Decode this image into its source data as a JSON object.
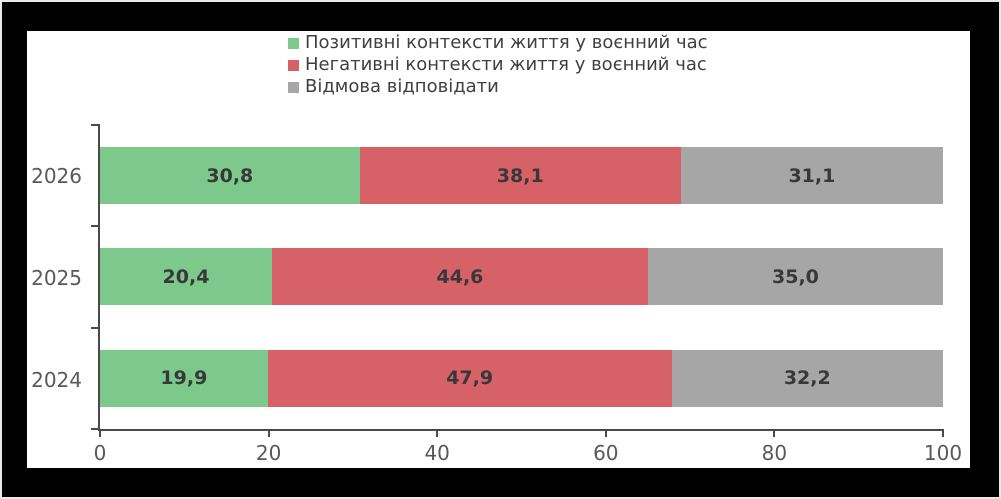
{
  "frame": {
    "background_color": "#000000",
    "outer_border_color": "#e9e9e9",
    "panel_background_color": "#ffffff"
  },
  "chart_data": {
    "type": "bar",
    "orientation": "horizontal",
    "stacked": true,
    "title": "",
    "categories": [
      "2026",
      "2025",
      "2024"
    ],
    "series": [
      {
        "name": "Позитивні контексти життя у воєнний час",
        "color": "#7dc98c",
        "values": [
          30.8,
          20.4,
          19.9
        ],
        "labels": [
          "30,8",
          "20,4",
          "19,9"
        ]
      },
      {
        "name": "Негативні контексти життя у воєнний час",
        "color": "#d66166",
        "values": [
          38.1,
          44.6,
          47.9
        ],
        "labels": [
          "38,1",
          "44,6",
          "47,9"
        ]
      },
      {
        "name": "Відмова відповідати",
        "color": "#a6a6a6",
        "values": [
          31.1,
          35.0,
          32.2
        ],
        "labels": [
          "31,1",
          "35,0",
          "32,2"
        ]
      }
    ],
    "x_axis": {
      "range": [
        0,
        100
      ],
      "ticks": [
        0,
        20,
        40,
        60,
        80,
        100
      ],
      "tick_labels": [
        "0",
        "20",
        "40",
        "60",
        "80",
        "100"
      ]
    },
    "legend_position": "top",
    "grid": false,
    "axis_line_color": "#4a4a4a",
    "tick_text_color": "#595959",
    "legend_text_color": "#3f3f3f",
    "value_label_color": "#383838"
  }
}
